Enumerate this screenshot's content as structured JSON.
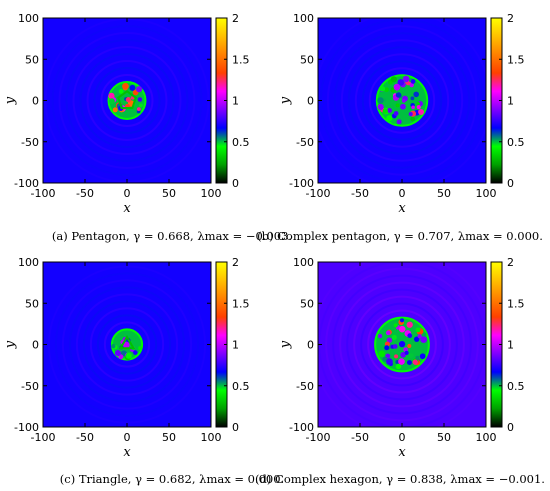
{
  "chart_data": [
    {
      "type": "heatmap",
      "caption": "(a) Pentagon, γ = 0.668, λmax = −0.003.",
      "caption_parts": {
        "prefix": "(a) Pentagon, ",
        "gamma": "0.668",
        "lambda": "−0.003."
      },
      "xlabel": "x",
      "ylabel": "y",
      "xlim": [
        -100,
        100
      ],
      "ylim": [
        -100,
        100
      ],
      "xticks": [
        -100,
        -50,
        0,
        50,
        100
      ],
      "yticks": [
        -100,
        -50,
        0,
        50,
        100
      ],
      "colorbar": {
        "min": 0,
        "max": 2,
        "ticks": [
          0,
          0.5,
          1,
          1.5,
          2
        ]
      },
      "background_level": 0.7,
      "pattern": {
        "center": [
          0,
          0
        ],
        "radius": 22,
        "shape": "pentagon",
        "level_range": [
          0.3,
          1.6
        ]
      }
    },
    {
      "type": "heatmap",
      "caption": "(b) Complex pentagon, γ = 0.707, λmax = 0.000.",
      "caption_parts": {
        "prefix": "(b) Complex pentagon, ",
        "gamma": "0.707",
        "lambda": "0.000."
      },
      "xlabel": "x",
      "ylabel": "y",
      "xlim": [
        -100,
        100
      ],
      "ylim": [
        -100,
        100
      ],
      "xticks": [
        -100,
        -50,
        0,
        50,
        100
      ],
      "yticks": [
        -100,
        -50,
        0,
        50,
        100
      ],
      "colorbar": {
        "min": 0,
        "max": 2,
        "ticks": [
          0,
          0.5,
          1,
          1.5,
          2
        ]
      },
      "background_level": 0.7,
      "pattern": {
        "center": [
          0,
          0
        ],
        "radius": 30,
        "shape": "complex-pentagon",
        "level_range": [
          0.3,
          1.3
        ]
      }
    },
    {
      "type": "heatmap",
      "caption": "(c) Triangle, γ = 0.682, λmax = 0.000.",
      "caption_parts": {
        "prefix": "(c) Triangle, ",
        "gamma": "0.682",
        "lambda": "0.000."
      },
      "xlabel": "x",
      "ylabel": "y",
      "xlim": [
        -100,
        100
      ],
      "ylim": [
        -100,
        100
      ],
      "xticks": [
        -100,
        -50,
        0,
        50,
        100
      ],
      "yticks": [
        -100,
        -50,
        0,
        50,
        100
      ],
      "colorbar": {
        "min": 0,
        "max": 2,
        "ticks": [
          0,
          0.5,
          1,
          1.5,
          2
        ]
      },
      "background_level": 0.7,
      "pattern": {
        "center": [
          0,
          0
        ],
        "radius": 18,
        "shape": "triangle",
        "level_range": [
          0.3,
          1.0
        ]
      }
    },
    {
      "type": "heatmap",
      "caption": "(d) Complex hexagon, γ = 0.838, λmax = −0.001.",
      "caption_parts": {
        "prefix": "(d) Complex hexagon, ",
        "gamma": "0.838",
        "lambda": "−0.001."
      },
      "xlabel": "x",
      "ylabel": "y",
      "xlim": [
        -100,
        100
      ],
      "ylim": [
        -100,
        100
      ],
      "xticks": [
        -100,
        -50,
        0,
        50,
        100
      ],
      "yticks": [
        -100,
        -50,
        0,
        50,
        100
      ],
      "colorbar": {
        "min": 0,
        "max": 2,
        "ticks": [
          0,
          0.5,
          1,
          1.5,
          2
        ]
      },
      "background_level": 0.8,
      "pattern": {
        "center": [
          0,
          0
        ],
        "radius": 32,
        "shape": "complex-hexagon",
        "level_range": [
          0.3,
          1.4
        ]
      }
    }
  ],
  "colormap": [
    "#000000",
    "#00a000",
    "#00ff00",
    "#0000ff",
    "#8000ff",
    "#ff00ff",
    "#ff4000",
    "#ff8000",
    "#ffc000",
    "#ffff00"
  ]
}
